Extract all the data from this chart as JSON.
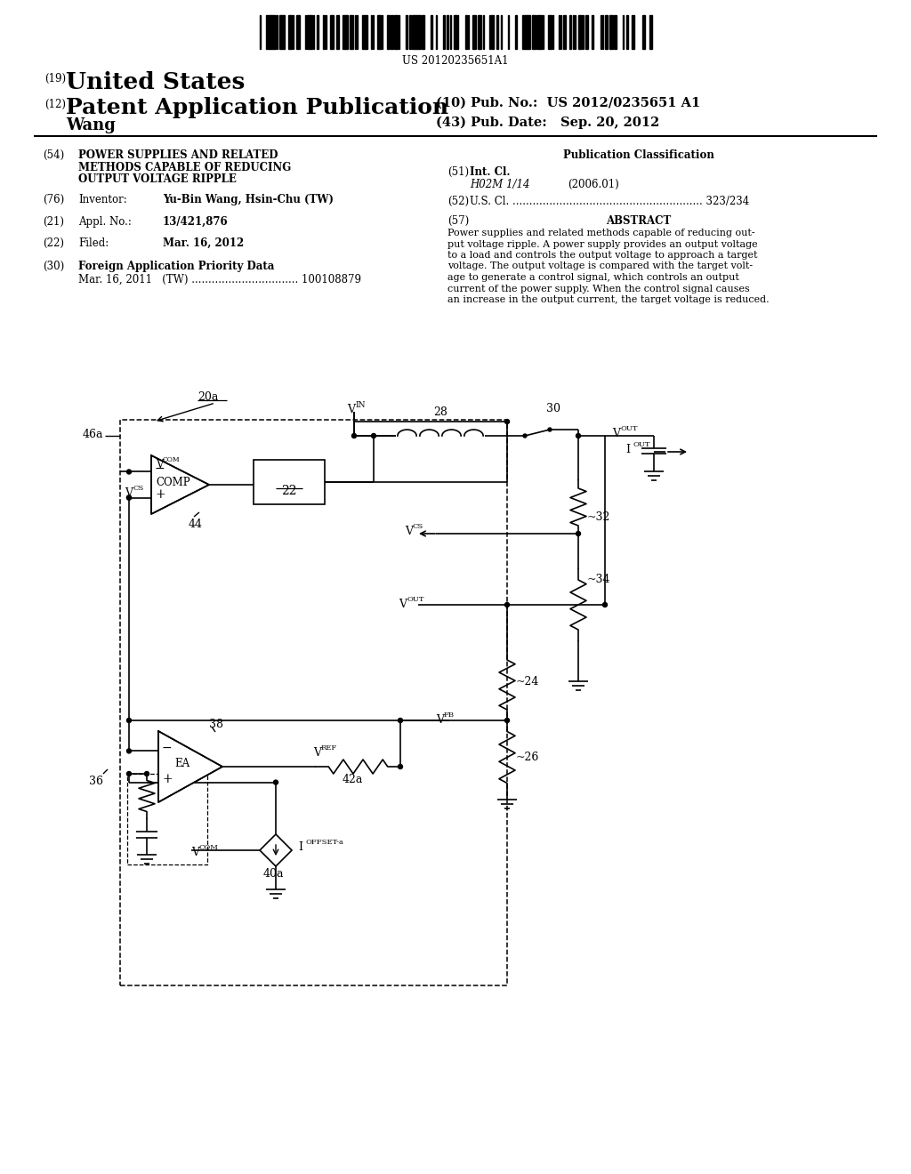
{
  "bg_color": "#ffffff",
  "barcode_text": "US 20120235651A1",
  "n19": "(19)",
  "us_text": "United States",
  "n12": "(12)",
  "pat_text": "Patent Application Publication",
  "pub_no": "(10) Pub. No.:  US 2012/0235651 A1",
  "pub_date_label": "(43) Pub. Date:",
  "pub_date_val": "Sep. 20, 2012",
  "author": "Wang",
  "f54_num": "(54)",
  "f54_lines": [
    "POWER SUPPLIES AND RELATED",
    "METHODS CAPABLE OF REDUCING",
    "OUTPUT VOLTAGE RIPPLE"
  ],
  "f76_num": "(76)",
  "f76_label": "Inventor:",
  "f76_val": "Yu-Bin Wang, Hsin-Chu (TW)",
  "f21_num": "(21)",
  "f21_label": "Appl. No.:",
  "f21_val": "13/421,876",
  "f22_num": "(22)",
  "f22_label": "Filed:",
  "f22_val": "Mar. 16, 2012",
  "f30_num": "(30)",
  "f30_label": "Foreign Application Priority Data",
  "f30_detail": "Mar. 16, 2011   (TW) ................................ 100108879",
  "pub_class": "Publication Classification",
  "f51_num": "(51)",
  "f51_label": "Int. Cl.",
  "f51_class": "H02M 1/14",
  "f51_year": "(2006.01)",
  "f52_num": "(52)",
  "f52_text": "U.S. Cl. ......................................................... 323/234",
  "f57_num": "(57)",
  "f57_label": "ABSTRACT",
  "abstract_lines": [
    "Power supplies and related methods capable of reducing out-",
    "put voltage ripple. A power supply provides an output voltage",
    "to a load and controls the output voltage to approach a target",
    "voltage. The output voltage is compared with the target volt-",
    "age to generate a control signal, which controls an output",
    "current of the power supply. When the control signal causes",
    "an increase in the output current, the target voltage is reduced."
  ]
}
